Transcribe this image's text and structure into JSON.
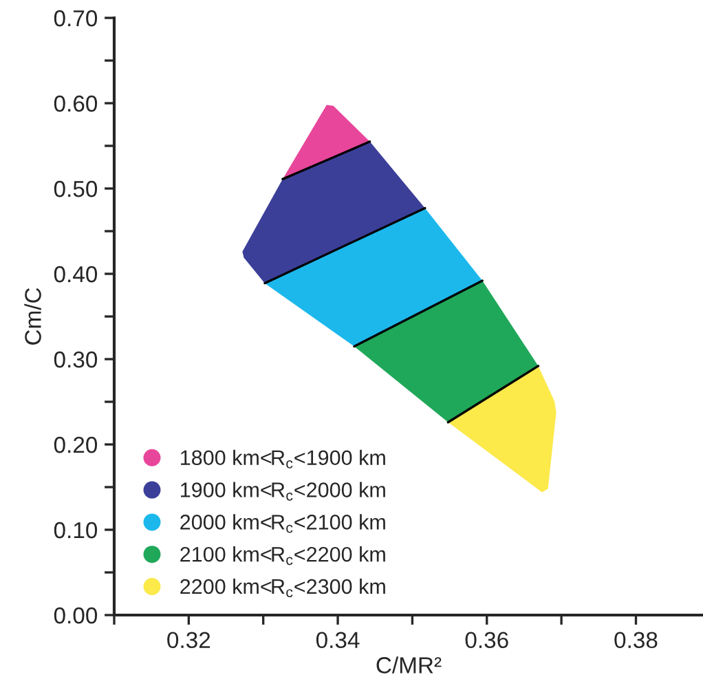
{
  "chart_data": {
    "type": "area",
    "xlabel": "C/MR²",
    "ylabel": "Cm/C",
    "xlim": [
      0.31,
      0.389
    ],
    "ylim": [
      0,
      0.7
    ],
    "xticks": [
      {
        "value": 0.31,
        "label": null
      },
      {
        "value": 0.32,
        "label": "0.32"
      },
      {
        "value": 0.33,
        "label": null
      },
      {
        "value": 0.34,
        "label": "0.34"
      },
      {
        "value": 0.35,
        "label": null
      },
      {
        "value": 0.36,
        "label": "0.36"
      },
      {
        "value": 0.37,
        "label": null
      },
      {
        "value": 0.38,
        "label": "0.38"
      }
    ],
    "yticks": [
      {
        "value": 0,
        "label": "0.00"
      },
      {
        "value": 0.05,
        "label": null
      },
      {
        "value": 0.1,
        "label": "0.10"
      },
      {
        "value": 0.15,
        "label": null
      },
      {
        "value": 0.2,
        "label": "0.20"
      },
      {
        "value": 0.25,
        "label": null
      },
      {
        "value": 0.3,
        "label": "0.30"
      },
      {
        "value": 0.35,
        "label": null
      },
      {
        "value": 0.4,
        "label": "0.40"
      },
      {
        "value": 0.45,
        "label": null
      },
      {
        "value": 0.5,
        "label": "0.50"
      },
      {
        "value": 0.55,
        "label": null
      },
      {
        "value": 0.6,
        "label": "0.60"
      },
      {
        "value": 0.65,
        "label": null
      },
      {
        "value": 0.7,
        "label": "0.70"
      }
    ],
    "legend": "bottom left",
    "grid": false,
    "series": [
      {
        "name": "1800 km<R$_{c}$<1900 km",
        "color": "#e8469b",
        "x": [
          0.3326,
          0.3443,
          0.3394,
          0.3385
        ],
        "values": [
          0.511,
          0.555,
          0.597,
          0.598
        ]
      },
      {
        "name": "1900 km<R$_{c}$<2000 km",
        "color": "#3b3f98",
        "x": [
          0.3326,
          0.3443,
          0.3517,
          0.3302,
          0.3274,
          0.3272
        ],
        "values": [
          0.511,
          0.555,
          0.477,
          0.389,
          0.419,
          0.426
        ]
      },
      {
        "name": "2000 km<R$_{c}$<2100 km",
        "color": "#1cb8ec",
        "x": [
          0.3302,
          0.3517,
          0.3594,
          0.3422
        ],
        "values": [
          0.389,
          0.477,
          0.392,
          0.315
        ]
      },
      {
        "name": "2100 km<R$_{c}$<2200 km",
        "color": "#20a85a",
        "x": [
          0.3422,
          0.3594,
          0.3669,
          0.3548
        ],
        "values": [
          0.315,
          0.392,
          0.292,
          0.226
        ]
      },
      {
        "name": "2200 km<R$_{c}$<2300 km",
        "color": "#fce94a",
        "x": [
          0.3548,
          0.3669,
          0.3691,
          0.3693,
          0.3682,
          0.3674
        ],
        "values": [
          0.226,
          0.292,
          0.25,
          0.237,
          0.148,
          0.144
        ]
      }
    ]
  }
}
